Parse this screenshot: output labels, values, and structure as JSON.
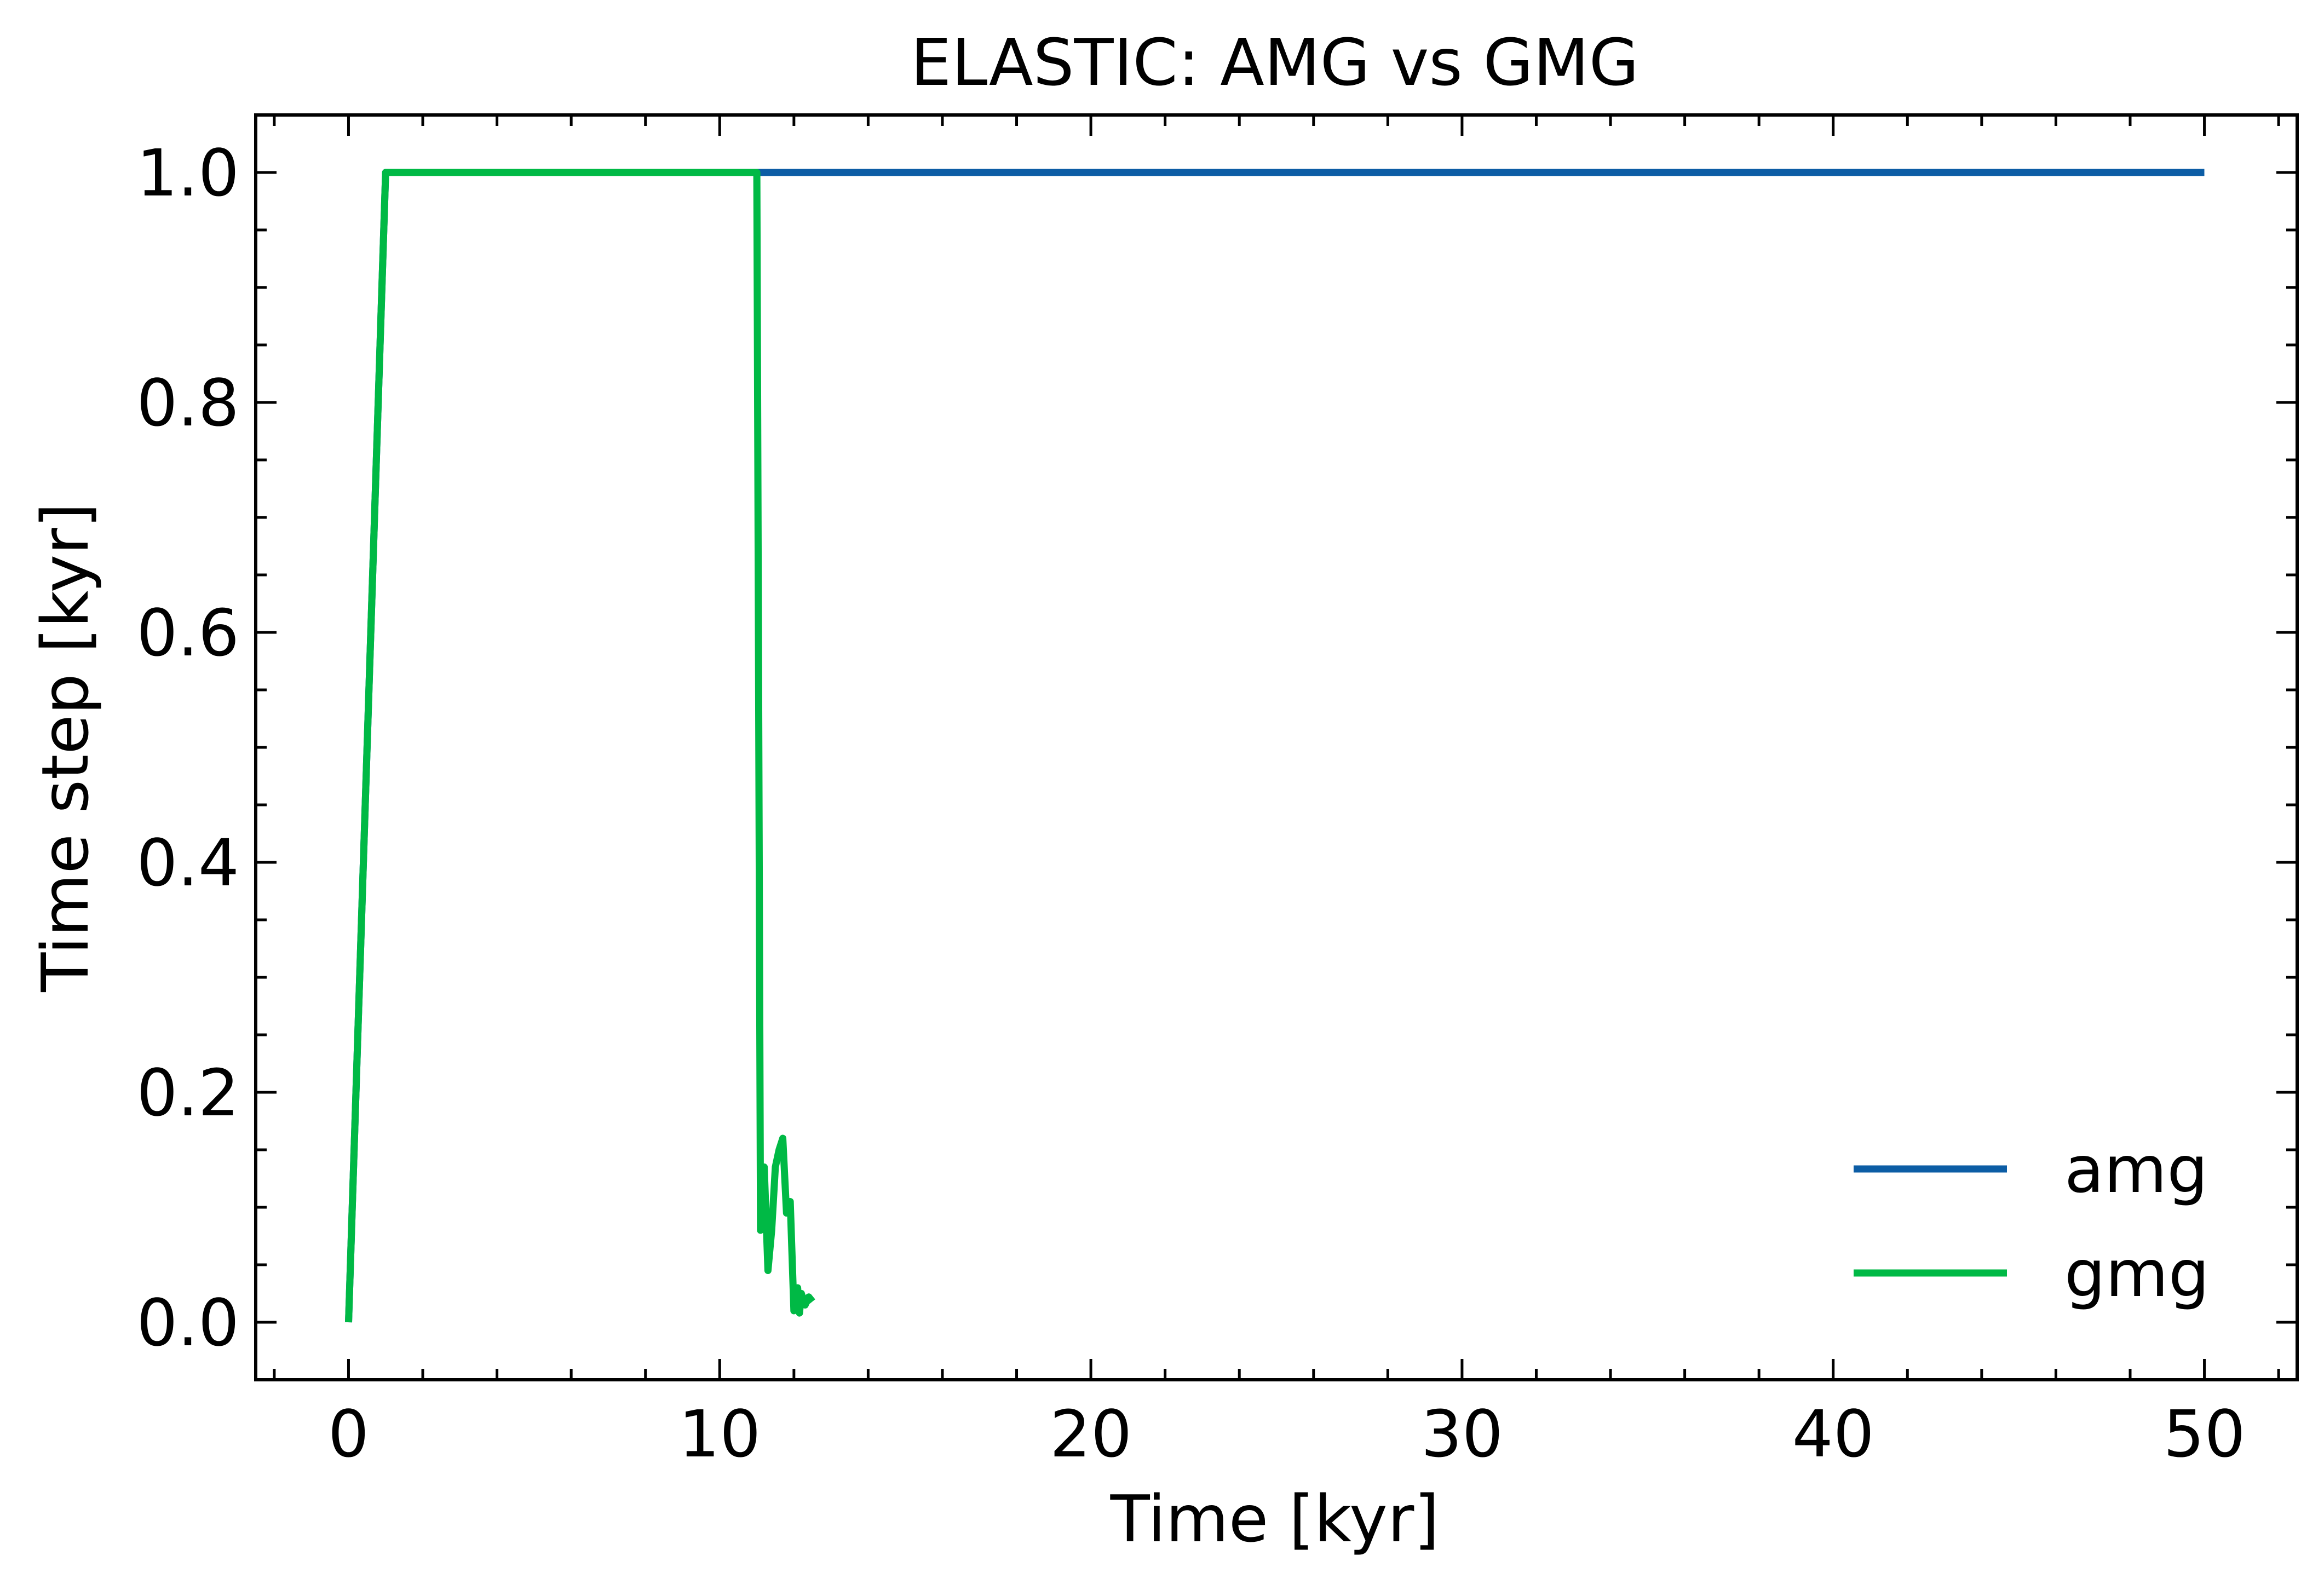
{
  "chart_data": {
    "type": "line",
    "title": "ELASTIC: AMG vs GMG",
    "xlabel": "Time [kyr]",
    "ylabel": "Time step [kyr]",
    "xlim": [
      -2.5,
      52.5
    ],
    "ylim": [
      -0.05,
      1.05
    ],
    "x_ticks": [
      0,
      10,
      20,
      30,
      40,
      50
    ],
    "x_tick_labels": [
      "0",
      "10",
      "20",
      "30",
      "40",
      "50"
    ],
    "y_ticks": [
      0.0,
      0.2,
      0.4,
      0.6,
      0.8,
      1.0
    ],
    "y_tick_labels": [
      "0.0",
      "0.2",
      "0.4",
      "0.6",
      "0.8",
      "1.0"
    ],
    "grid": false,
    "legend_position": "lower-right",
    "series": [
      {
        "name": "amg",
        "color": "#0C5DA5",
        "x": [
          0,
          1,
          50
        ],
        "y": [
          0.0,
          1.0,
          1.0
        ]
      },
      {
        "name": "gmg",
        "color": "#00B945",
        "x": [
          0,
          1,
          11,
          11.1,
          11.2,
          11.3,
          11.4,
          11.5,
          11.6,
          11.7,
          11.8,
          11.9,
          12.0,
          12.1,
          12.15,
          12.2,
          12.3,
          12.4,
          12.5
        ],
        "y": [
          0.0,
          1.0,
          1.0,
          0.08,
          0.135,
          0.045,
          0.08,
          0.135,
          0.15,
          0.16,
          0.095,
          0.105,
          0.01,
          0.03,
          0.008,
          0.025,
          0.015,
          0.022,
          0.018
        ]
      }
    ]
  }
}
